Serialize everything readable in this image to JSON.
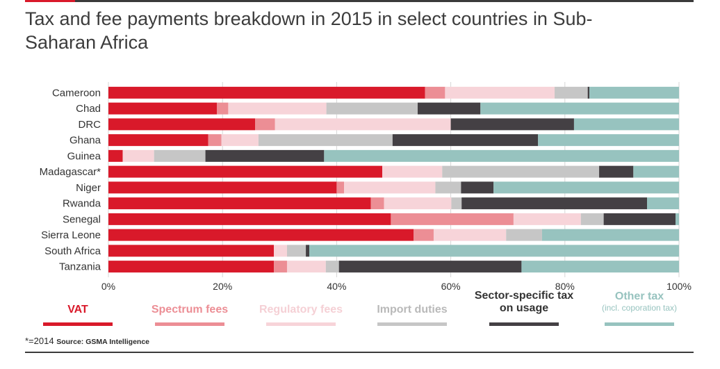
{
  "title": "Tax and fee payments breakdown in 2015 in select countries in Sub-Saharan Africa",
  "footnote": {
    "note": "*=2014",
    "source": "Source: GSMA Intelligence"
  },
  "chart_data": {
    "type": "bar",
    "orientation": "horizontal",
    "stacked": true,
    "title": "Tax and fee payments breakdown in 2015 in select countries in Sub-Saharan Africa",
    "categories": [
      "Cameroon",
      "Chad",
      "DRC",
      "Ghana",
      "Guinea",
      "Madagascar*",
      "Niger",
      "Rwanda",
      "Senegal",
      "Sierra Leone",
      "South Africa",
      "Tanzania"
    ],
    "xlim": [
      0,
      100
    ],
    "xticks": [
      "0%",
      "20%",
      "40%",
      "60%",
      "80%",
      "100%"
    ],
    "grid": true,
    "legend_position": "bottom",
    "series": [
      {
        "name": "VAT",
        "color": "#d9192a",
        "values": [
          55.5,
          19,
          25.7,
          17.5,
          2.5,
          48,
          40,
          46,
          49.5,
          53.5,
          29,
          29
        ]
      },
      {
        "name": "Spectrum fees",
        "color": "#ec8e95",
        "values": [
          3.5,
          2,
          3.5,
          2.3,
          0,
          0,
          1.3,
          2.3,
          21.5,
          3.5,
          0,
          2.3
        ]
      },
      {
        "name": "Regulatory fees",
        "color": "#f7d4d9",
        "values": [
          19.2,
          17.2,
          30.8,
          6.5,
          5.5,
          10.5,
          16,
          11.8,
          11.8,
          12.7,
          2.3,
          6.8
        ]
      },
      {
        "name": "Import duties",
        "color": "#c6c6c6",
        "values": [
          5.8,
          16,
          0,
          23.5,
          9,
          27.5,
          4.5,
          1.8,
          4,
          6.3,
          3.3,
          2.3
        ]
      },
      {
        "name": "Sector-specific tax on usage",
        "color": "#444044",
        "values": [
          0.3,
          11,
          21.6,
          25.5,
          20.8,
          6,
          5.7,
          32.5,
          12.6,
          0,
          0.6,
          32
        ]
      },
      {
        "name": "Other tax (incl. coporation tax)",
        "color": "#97c3bf",
        "values": [
          15.7,
          34.8,
          18.4,
          24.7,
          62.2,
          8,
          32.5,
          5.6,
          0.6,
          24,
          64.8,
          27.6
        ]
      }
    ]
  },
  "legend": [
    {
      "label": "VAT",
      "sub": "",
      "color": "#d9192a",
      "text_color": "#d9192a"
    },
    {
      "label": "Spectrum fees",
      "sub": "",
      "color": "#ec8e95",
      "text_color": "#ec8e95"
    },
    {
      "label": "Regulatory fees",
      "sub": "",
      "color": "#f7d4d9",
      "text_color": "#f5d0d5"
    },
    {
      "label": "Import duties",
      "sub": "",
      "color": "#c6c6c6",
      "text_color": "#b9b9b9"
    },
    {
      "label": "Sector-specific tax",
      "label2": "on usage",
      "sub": "",
      "color": "#444044",
      "text_color": "#333333"
    },
    {
      "label": "Other tax",
      "sub": "(incl. coporation tax)",
      "color": "#97c3bf",
      "text_color": "#97c3bf"
    }
  ]
}
